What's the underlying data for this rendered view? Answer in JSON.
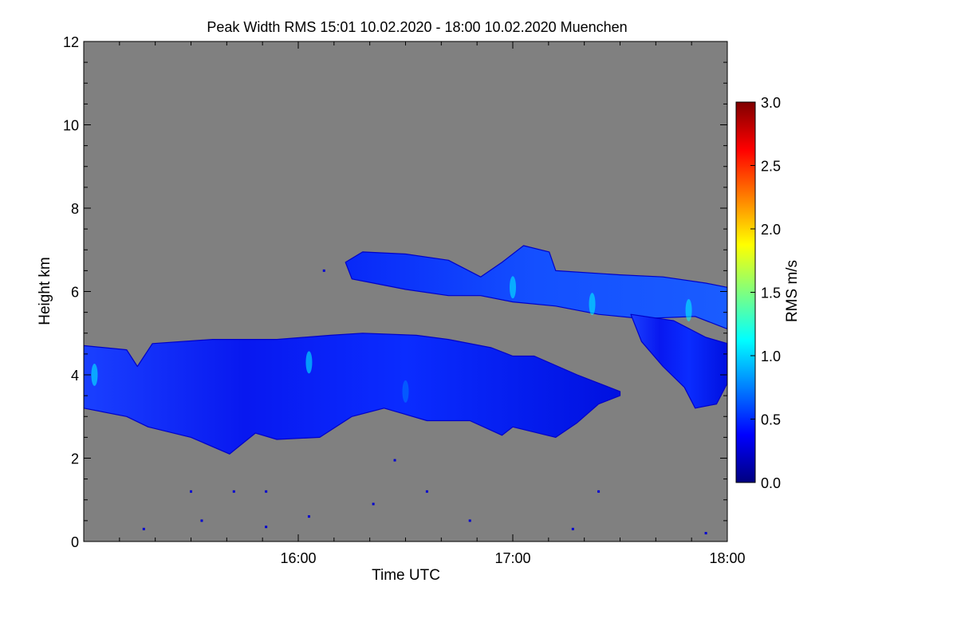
{
  "chart_data": {
    "type": "heatmap",
    "title": "Peak Width RMS   15:01 10.02.2020 - 18:00 10.02.2020 Muenchen",
    "xlabel": "Time UTC",
    "ylabel": "Height km",
    "xlim_hours": [
      15.0,
      18.0
    ],
    "ylim": [
      0,
      12
    ],
    "x_ticks": [
      {
        "value": 16,
        "label": "16:00"
      },
      {
        "value": 17,
        "label": "17:00"
      },
      {
        "value": 18,
        "label": "18:00"
      }
    ],
    "y_ticks": [
      {
        "value": 0,
        "label": "0"
      },
      {
        "value": 2,
        "label": "2"
      },
      {
        "value": 4,
        "label": "4"
      },
      {
        "value": 6,
        "label": "6"
      },
      {
        "value": 8,
        "label": "8"
      },
      {
        "value": 10,
        "label": "10"
      },
      {
        "value": 12,
        "label": "12"
      }
    ],
    "background_color": "#808080",
    "colorbar": {
      "label": "RMS m/s",
      "range": [
        0.0,
        3.0
      ],
      "ticks": [
        {
          "value": 0.0,
          "label": "0.0"
        },
        {
          "value": 0.5,
          "label": "0.5"
        },
        {
          "value": 1.0,
          "label": "1.0"
        },
        {
          "value": 1.5,
          "label": "1.5"
        },
        {
          "value": 2.0,
          "label": "2.0"
        },
        {
          "value": 2.5,
          "label": "2.5"
        },
        {
          "value": 3.0,
          "label": "3.0"
        }
      ],
      "colormap": [
        "#00007f",
        "#0000ff",
        "#007fff",
        "#00ffff",
        "#7fff7f",
        "#ffff00",
        "#ff7f00",
        "#ff0000",
        "#7f0000"
      ]
    },
    "layers": [
      {
        "name": "lower-cloud-layer",
        "value_rms": 0.35,
        "top": [
          [
            15.0,
            4.7
          ],
          [
            15.2,
            4.6
          ],
          [
            15.25,
            4.2
          ],
          [
            15.32,
            4.75
          ],
          [
            15.6,
            4.85
          ],
          [
            15.9,
            4.85
          ],
          [
            16.15,
            4.95
          ],
          [
            16.3,
            5.0
          ],
          [
            16.55,
            4.95
          ],
          [
            16.7,
            4.85
          ],
          [
            16.9,
            4.65
          ],
          [
            17.0,
            4.45
          ],
          [
            17.1,
            4.45
          ],
          [
            17.3,
            4.0
          ],
          [
            17.45,
            3.7
          ],
          [
            17.5,
            3.6
          ]
        ],
        "bottom": [
          [
            17.5,
            3.5
          ],
          [
            17.4,
            3.3
          ],
          [
            17.3,
            2.85
          ],
          [
            17.2,
            2.5
          ],
          [
            17.0,
            2.75
          ],
          [
            16.95,
            2.55
          ],
          [
            16.8,
            2.9
          ],
          [
            16.6,
            2.9
          ],
          [
            16.4,
            3.2
          ],
          [
            16.25,
            3.0
          ],
          [
            16.1,
            2.5
          ],
          [
            15.9,
            2.45
          ],
          [
            15.8,
            2.6
          ],
          [
            15.68,
            2.1
          ],
          [
            15.5,
            2.5
          ],
          [
            15.3,
            2.75
          ],
          [
            15.2,
            3.0
          ],
          [
            15.0,
            3.2
          ]
        ]
      },
      {
        "name": "upper-cloud-layer",
        "value_rms": 0.45,
        "top": [
          [
            16.22,
            6.7
          ],
          [
            16.3,
            6.95
          ],
          [
            16.5,
            6.9
          ],
          [
            16.7,
            6.75
          ],
          [
            16.85,
            6.35
          ],
          [
            16.95,
            6.7
          ],
          [
            17.05,
            7.1
          ],
          [
            17.17,
            6.95
          ],
          [
            17.2,
            6.5
          ],
          [
            17.5,
            6.4
          ],
          [
            17.7,
            6.35
          ],
          [
            17.9,
            6.2
          ],
          [
            18.0,
            6.1
          ]
        ],
        "bottom": [
          [
            18.0,
            5.1
          ],
          [
            17.85,
            5.4
          ],
          [
            17.6,
            5.35
          ],
          [
            17.4,
            5.45
          ],
          [
            17.2,
            5.65
          ],
          [
            17.0,
            5.75
          ],
          [
            16.85,
            5.9
          ],
          [
            16.7,
            5.9
          ],
          [
            16.5,
            6.05
          ],
          [
            16.35,
            6.2
          ],
          [
            16.25,
            6.3
          ]
        ]
      },
      {
        "name": "descending-precipitation-streak",
        "value_rms": 0.3,
        "top": [
          [
            17.55,
            5.45
          ],
          [
            17.75,
            5.3
          ],
          [
            17.9,
            4.9
          ],
          [
            18.0,
            4.75
          ]
        ],
        "bottom": [
          [
            18.0,
            3.8
          ],
          [
            17.95,
            3.3
          ],
          [
            17.85,
            3.2
          ],
          [
            17.8,
            3.7
          ],
          [
            17.7,
            4.2
          ],
          [
            17.6,
            4.8
          ]
        ]
      }
    ],
    "highlights": [
      {
        "x": 17.0,
        "y": 6.1,
        "value_rms": 0.8
      },
      {
        "x": 17.37,
        "y": 5.7,
        "value_rms": 0.75
      },
      {
        "x": 17.82,
        "y": 5.55,
        "value_rms": 0.7
      },
      {
        "x": 15.05,
        "y": 4.0,
        "value_rms": 0.6
      },
      {
        "x": 16.05,
        "y": 4.3,
        "value_rms": 0.6
      },
      {
        "x": 16.5,
        "y": 3.6,
        "value_rms": 0.55
      }
    ],
    "isolated_echoes": [
      [
        16.45,
        1.95
      ],
      [
        16.12,
        6.5
      ],
      [
        15.5,
        1.2
      ],
      [
        15.85,
        1.2
      ],
      [
        15.7,
        1.2
      ],
      [
        16.35,
        0.9
      ],
      [
        15.28,
        0.3
      ],
      [
        15.55,
        0.5
      ],
      [
        16.8,
        0.5
      ],
      [
        17.4,
        1.2
      ],
      [
        17.9,
        0.2
      ],
      [
        17.28,
        0.3
      ],
      [
        16.6,
        1.2
      ],
      [
        15.85,
        0.35
      ],
      [
        16.05,
        0.6
      ]
    ]
  }
}
